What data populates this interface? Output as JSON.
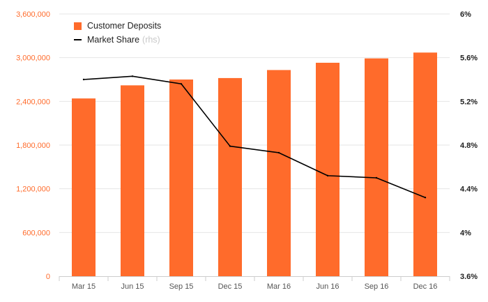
{
  "colors": {
    "bar": "#ff6b2b",
    "line": "#000000",
    "left_axis_text": "#ff6b2b",
    "right_axis_text": "#222222",
    "grid": "#e6e6e6"
  },
  "legend": {
    "deposits_label": "Customer Deposits",
    "market_label": "Market Share",
    "market_suffix": "(rhs)"
  },
  "chart_data": {
    "type": "bar",
    "categories": [
      "Mar 15",
      "Jun 15",
      "Sep 15",
      "Dec 15",
      "Mar 16",
      "Jun 16",
      "Sep 16",
      "Dec 16"
    ],
    "series": [
      {
        "name": "Customer Deposits",
        "type": "bar",
        "axis": "left",
        "values": [
          2440000,
          2620000,
          2700000,
          2720000,
          2830000,
          2930000,
          2990000,
          3070000
        ]
      },
      {
        "name": "Market Share",
        "type": "line",
        "axis": "right",
        "values": [
          5.4,
          5.43,
          5.36,
          4.79,
          4.73,
          4.52,
          4.5,
          4.32
        ]
      }
    ],
    "y_left": {
      "ylim": [
        0,
        3600000
      ],
      "ticks": [
        0,
        600000,
        1200000,
        1800000,
        2400000,
        3000000,
        3600000
      ],
      "tick_labels": [
        "0",
        "600,000",
        "1,200,000",
        "1,800,000",
        "2,400,000",
        "3,000,000",
        "3,600,000"
      ]
    },
    "y_right": {
      "ylim": [
        3.6,
        6.0
      ],
      "ticks": [
        3.6,
        4.0,
        4.4,
        4.8,
        5.2,
        5.6,
        6.0
      ],
      "tick_labels": [
        "3.6%",
        "4%",
        "4.4%",
        "4.8%",
        "5.2%",
        "5.6%",
        "6%"
      ]
    },
    "grid": true,
    "legend_position": "top-left"
  }
}
